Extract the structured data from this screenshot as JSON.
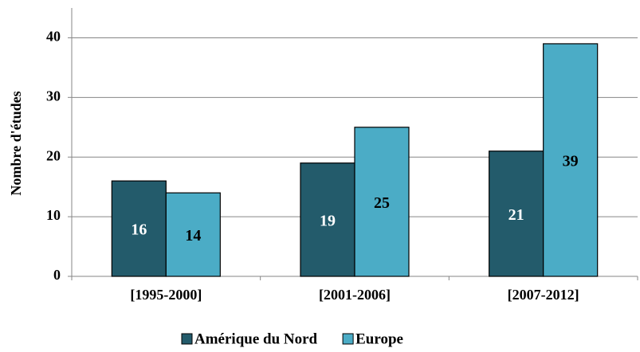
{
  "chart_data": {
    "type": "bar",
    "y_label": "Nombre d'études",
    "categories": [
      "[1995-2000]",
      "[2001-2006]",
      "[2007-2012]"
    ],
    "series": [
      {
        "name": "Amérique du Nord",
        "color": "#235b6b",
        "label_color": "#ffffff",
        "values": [
          16,
          19,
          21
        ]
      },
      {
        "name": "Europe",
        "color": "#4bacc6",
        "label_color": "#000000",
        "values": [
          14,
          25,
          39
        ]
      }
    ],
    "ylim": [
      0,
      45
    ],
    "yticks": [
      0,
      10,
      20,
      30,
      40
    ],
    "grid": true,
    "legend": "bottom"
  }
}
